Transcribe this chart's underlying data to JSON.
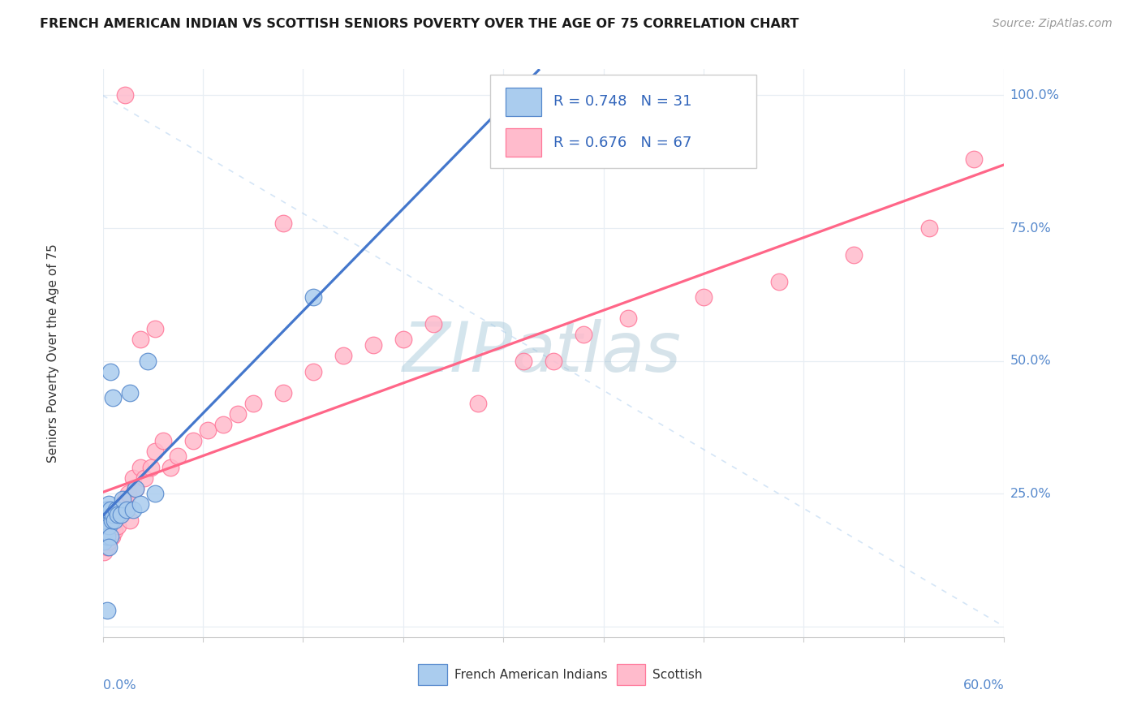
{
  "title": "FRENCH AMERICAN INDIAN VS SCOTTISH SENIORS POVERTY OVER THE AGE OF 75 CORRELATION CHART",
  "source": "Source: ZipAtlas.com",
  "ylabel": "Seniors Poverty Over the Age of 75",
  "legend_label1": "French American Indians",
  "legend_label2": "Scottish",
  "R1": 0.748,
  "N1": 31,
  "R2": 0.676,
  "N2": 67,
  "color_blue_fill": "#AACCEE",
  "color_blue_edge": "#5588CC",
  "color_pink_fill": "#FFBBCC",
  "color_pink_edge": "#FF7799",
  "color_blue_line": "#4477CC",
  "color_pink_line": "#FF6688",
  "color_dash": "#AACCEE",
  "grid_color": "#E8EEF4",
  "axis_color": "#5588CC",
  "title_color": "#1A1A1A",
  "source_color": "#999999",
  "bg_color": "#FFFFFF",
  "xmin": 0.0,
  "xmax": 0.6,
  "ymin": -0.02,
  "ymax": 1.05,
  "french_x": [
    0.001,
    0.001,
    0.002,
    0.002,
    0.002,
    0.003,
    0.003,
    0.004,
    0.004,
    0.005,
    0.005,
    0.006,
    0.007,
    0.008,
    0.009,
    0.01,
    0.012,
    0.013,
    0.016,
    0.018,
    0.02,
    0.022,
    0.025,
    0.03,
    0.035,
    0.14,
    0.003,
    0.005,
    0.007,
    0.28,
    0.004
  ],
  "french_y": [
    0.16,
    0.2,
    0.18,
    0.21,
    0.22,
    0.17,
    0.22,
    0.19,
    0.23,
    0.17,
    0.22,
    0.2,
    0.21,
    0.2,
    0.22,
    0.21,
    0.21,
    0.24,
    0.22,
    0.44,
    0.22,
    0.26,
    0.23,
    0.5,
    0.25,
    0.62,
    0.03,
    0.48,
    0.43,
    1.0,
    0.15
  ],
  "scottish_x": [
    0.001,
    0.001,
    0.001,
    0.002,
    0.002,
    0.002,
    0.003,
    0.003,
    0.003,
    0.003,
    0.003,
    0.004,
    0.004,
    0.005,
    0.005,
    0.005,
    0.006,
    0.006,
    0.007,
    0.007,
    0.008,
    0.008,
    0.009,
    0.01,
    0.01,
    0.011,
    0.012,
    0.013,
    0.014,
    0.015,
    0.016,
    0.017,
    0.018,
    0.02,
    0.022,
    0.025,
    0.028,
    0.032,
    0.035,
    0.04,
    0.045,
    0.05,
    0.06,
    0.07,
    0.08,
    0.09,
    0.1,
    0.12,
    0.14,
    0.16,
    0.18,
    0.2,
    0.22,
    0.25,
    0.28,
    0.3,
    0.32,
    0.35,
    0.4,
    0.45,
    0.5,
    0.55,
    0.58,
    0.025,
    0.035,
    0.015,
    0.12
  ],
  "scottish_y": [
    0.14,
    0.18,
    0.2,
    0.16,
    0.19,
    0.21,
    0.15,
    0.17,
    0.19,
    0.2,
    0.22,
    0.16,
    0.19,
    0.18,
    0.2,
    0.21,
    0.17,
    0.2,
    0.19,
    0.21,
    0.18,
    0.2,
    0.21,
    0.19,
    0.21,
    0.22,
    0.21,
    0.22,
    0.23,
    0.24,
    0.23,
    0.25,
    0.2,
    0.28,
    0.26,
    0.3,
    0.28,
    0.3,
    0.33,
    0.35,
    0.3,
    0.32,
    0.35,
    0.37,
    0.38,
    0.4,
    0.42,
    0.44,
    0.48,
    0.51,
    0.53,
    0.54,
    0.57,
    0.42,
    0.5,
    0.5,
    0.55,
    0.58,
    0.62,
    0.65,
    0.7,
    0.75,
    0.88,
    0.54,
    0.56,
    1.0,
    0.76
  ]
}
